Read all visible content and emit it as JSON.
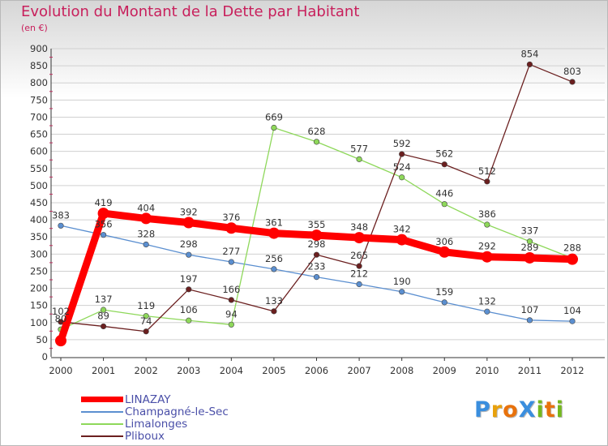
{
  "title": "Evolution du Montant de la Dette par Habitant",
  "subtitle": "(en €)",
  "brand": {
    "text": "ProXiti",
    "letters": [
      "P",
      "r",
      "o",
      "X",
      "i",
      "t",
      "i"
    ],
    "colors": [
      "#3a8ede",
      "#e8a10c",
      "#e8720c",
      "#3a8ede",
      "#74b81e",
      "#e8720c",
      "#74b81e"
    ]
  },
  "chart_data": {
    "type": "line",
    "title": "Evolution du Montant de la Dette par Habitant",
    "ylabel": "(en €)",
    "xlabel": "",
    "x": [
      "2000",
      "2001",
      "2002",
      "2003",
      "2004",
      "2005",
      "2006",
      "2007",
      "2008",
      "2009",
      "2010",
      "2011",
      "2012"
    ],
    "ylim": [
      0,
      900
    ],
    "yticks": [
      0,
      50,
      100,
      150,
      200,
      250,
      300,
      350,
      400,
      450,
      500,
      550,
      600,
      650,
      700,
      750,
      800,
      850,
      900
    ],
    "grid": "horizontal",
    "legend_position": "bottom-left",
    "series": [
      {
        "name": "LINAZAY",
        "color": "#ff0000",
        "values": [
          47,
          419,
          404,
          392,
          376,
          361,
          355,
          348,
          342,
          306,
          292,
          289,
          285
        ],
        "labels": [
          "",
          "419",
          "404",
          "392",
          "376",
          "361",
          "355",
          "348",
          "342",
          "306",
          "292",
          "289",
          ""
        ]
      },
      {
        "name": "Champagné-le-Sec",
        "color": "#5b8fd0",
        "values": [
          383,
          356,
          328,
          298,
          277,
          256,
          233,
          212,
          190,
          159,
          132,
          107,
          104
        ],
        "labels": [
          "383",
          "356",
          "328",
          "298",
          "277",
          "256",
          "233",
          "212",
          "190",
          "159",
          "132",
          "107",
          "104"
        ]
      },
      {
        "name": "Limalonges",
        "color": "#8ed85a",
        "values": [
          80,
          137,
          119,
          106,
          94,
          669,
          628,
          577,
          524,
          446,
          386,
          337,
          288
        ],
        "labels": [
          "80",
          "137",
          "119",
          "106",
          "94",
          "669",
          "628",
          "577",
          "524",
          "446",
          "386",
          "337",
          "288"
        ]
      },
      {
        "name": "Pliboux",
        "color": "#6b1f1f",
        "values": [
          102,
          89,
          74,
          197,
          166,
          133,
          298,
          265,
          592,
          562,
          512,
          854,
          803
        ],
        "labels": [
          "102",
          "89",
          "74",
          "197",
          "166",
          "133",
          "298",
          "265",
          "592",
          "562",
          "512",
          "854",
          "803"
        ]
      }
    ]
  }
}
